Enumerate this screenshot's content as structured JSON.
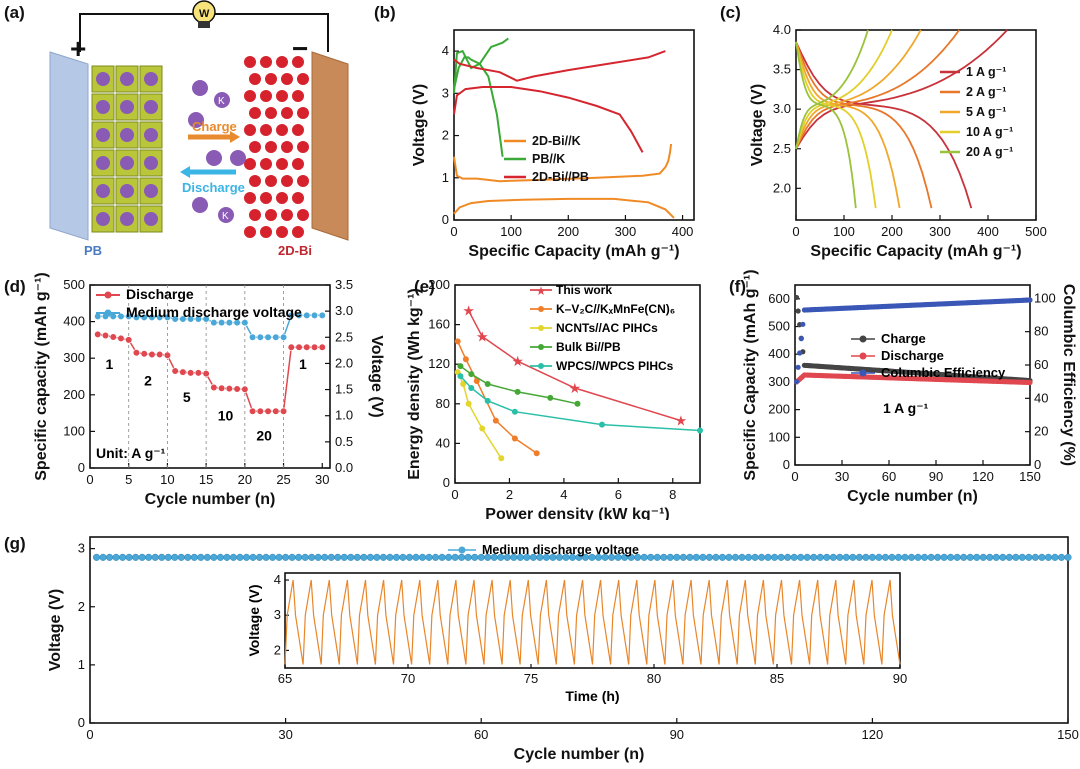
{
  "panels": {
    "a": {
      "label": "(a)",
      "plus": "+",
      "minus": "−",
      "bulb_letter": "W",
      "charge": "Charge",
      "discharge": "Discharge",
      "ion": "K",
      "left_material": "PB",
      "right_material": "2D-Bi",
      "colors": {
        "pb": "#b9c63a",
        "bi": "#d6222d",
        "ion": "#8a5bb5",
        "charge": "#e88a2e",
        "discharge": "#3bb4e6"
      }
    },
    "b": {
      "label": "(b)"
    },
    "c": {
      "label": "(c)"
    },
    "d": {
      "label": "(d)"
    },
    "e": {
      "label": "(e)"
    },
    "f": {
      "label": "(f)"
    },
    "g": {
      "label": "(g)"
    }
  },
  "chart_data": [
    {
      "id": "b",
      "type": "line",
      "xlabel": "Specific Capacity (mAh g⁻¹)",
      "ylabel": "Voltage (V)",
      "xlim": [
        0,
        420
      ],
      "ylim": [
        0,
        4.5
      ],
      "xticks": [
        0,
        100,
        200,
        300,
        400
      ],
      "yticks": [
        0,
        1,
        2,
        3,
        4
      ],
      "legend_position": "center-right",
      "series": [
        {
          "name": "2D-Bi//K",
          "color": "#f08a24",
          "x": [
            0,
            5,
            15,
            40,
            80,
            150,
            250,
            330,
            360,
            370,
            375,
            378,
            380
          ],
          "y": [
            1.5,
            1.05,
            0.98,
            0.98,
            0.92,
            0.95,
            1.0,
            1.05,
            1.1,
            1.25,
            1.4,
            1.6,
            1.8
          ]
        },
        {
          "name": "2D-Bi//K",
          "color": "#f08a24",
          "legend": false,
          "x": [
            0,
            10,
            30,
            60,
            120,
            200,
            280,
            340,
            370,
            385
          ],
          "y": [
            0.15,
            0.3,
            0.4,
            0.45,
            0.48,
            0.5,
            0.5,
            0.42,
            0.25,
            0.05
          ]
        },
        {
          "name": "PB//K",
          "color": "#3aa935",
          "x": [
            0,
            8,
            18,
            25,
            30,
            45,
            60,
            75,
            85
          ],
          "y": [
            3.1,
            3.6,
            3.85,
            3.85,
            3.8,
            3.7,
            3.4,
            2.5,
            1.5
          ]
        },
        {
          "name": "PB//K",
          "color": "#3aa935",
          "legend": false,
          "x": [
            0,
            5,
            15,
            30,
            45,
            55,
            65,
            75,
            85,
            95
          ],
          "y": [
            3.0,
            3.95,
            4.0,
            3.6,
            3.7,
            3.9,
            4.1,
            4.15,
            4.2,
            4.3
          ]
        },
        {
          "name": "2D-Bi//PB",
          "color": "#d5262f",
          "x": [
            0,
            10,
            40,
            80,
            110,
            140,
            200,
            270,
            340,
            370
          ],
          "y": [
            3.8,
            3.7,
            3.6,
            3.5,
            3.3,
            3.4,
            3.55,
            3.7,
            3.85,
            4.0
          ]
        },
        {
          "name": "2D-Bi//PB",
          "color": "#d5262f",
          "legend": false,
          "x": [
            0,
            5,
            20,
            50,
            100,
            150,
            200,
            250,
            290,
            310,
            330
          ],
          "y": [
            2.5,
            2.95,
            3.1,
            3.15,
            3.15,
            3.05,
            2.9,
            2.7,
            2.5,
            2.1,
            1.6
          ]
        }
      ]
    },
    {
      "id": "c",
      "type": "line",
      "xlabel": "Specific Capacity (mAh g⁻¹)",
      "ylabel": "Voltage (V)",
      "xlim": [
        0,
        500
      ],
      "ylim": [
        1.6,
        4.0
      ],
      "xticks": [
        0,
        100,
        200,
        300,
        400,
        500
      ],
      "yticks": [
        2.0,
        2.5,
        3.0,
        3.5,
        4.0
      ],
      "legend_position": "right",
      "series": [
        {
          "name": "1 A g⁻¹",
          "color": "#c8323b",
          "cap": 440
        },
        {
          "name": "2 A g⁻¹",
          "color": "#e8772a",
          "cap": 340
        },
        {
          "name": "5 A g⁻¹",
          "color": "#f0a82c",
          "cap": 260
        },
        {
          "name": "10 A g⁻¹",
          "color": "#e2cf2a",
          "cap": 200
        },
        {
          "name": "20 A g⁻¹",
          "color": "#9ac23a",
          "cap": 150
        }
      ]
    },
    {
      "id": "d",
      "type": "scatter",
      "xlabel": "Cycle number (n)",
      "ylabel": "Specific capacity (mAh g⁻¹)",
      "y2label": "Voltage (V)",
      "xlim": [
        0,
        31
      ],
      "ylim": [
        0,
        500
      ],
      "y2lim": [
        0,
        3.5
      ],
      "xticks": [
        0,
        5,
        10,
        15,
        20,
        25,
        30
      ],
      "yticks": [
        0,
        100,
        200,
        300,
        400,
        500
      ],
      "y2ticks": [
        0.0,
        0.5,
        1.0,
        1.5,
        2.0,
        2.5,
        3.0,
        3.5
      ],
      "legend_position": "top-left",
      "rate_labels": [
        {
          "text": "1",
          "x": 2.5,
          "y": 270
        },
        {
          "text": "2",
          "x": 7.5,
          "y": 225
        },
        {
          "text": "5",
          "x": 12.5,
          "y": 180
        },
        {
          "text": "10",
          "x": 17.5,
          "y": 130
        },
        {
          "text": "20",
          "x": 22.5,
          "y": 75
        },
        {
          "text": "1",
          "x": 27.5,
          "y": 270
        }
      ],
      "unit_text": "Unit: A g⁻¹",
      "series": [
        {
          "name": "Discharge",
          "color": "#e0474f",
          "axis": "y",
          "x": [
            1,
            2,
            3,
            4,
            5,
            6,
            7,
            8,
            9,
            10,
            11,
            12,
            13,
            14,
            15,
            16,
            17,
            18,
            19,
            20,
            21,
            22,
            23,
            24,
            25,
            26,
            27,
            28,
            29,
            30
          ],
          "y": [
            365,
            362,
            358,
            354,
            350,
            315,
            312,
            310,
            310,
            308,
            265,
            262,
            260,
            260,
            258,
            220,
            218,
            217,
            216,
            215,
            155,
            155,
            155,
            155,
            155,
            330,
            330,
            330,
            330,
            330
          ]
        },
        {
          "name": "Medium discharge voltage",
          "color": "#4aa8d8",
          "axis": "y2",
          "x": [
            1,
            2,
            3,
            4,
            5,
            6,
            7,
            8,
            9,
            10,
            11,
            12,
            13,
            14,
            15,
            16,
            17,
            18,
            19,
            20,
            21,
            22,
            23,
            24,
            25,
            26,
            27,
            28,
            29,
            30
          ],
          "y": [
            2.9,
            2.9,
            2.9,
            2.9,
            2.9,
            2.88,
            2.88,
            2.88,
            2.88,
            2.88,
            2.85,
            2.85,
            2.85,
            2.85,
            2.85,
            2.78,
            2.78,
            2.78,
            2.78,
            2.78,
            2.5,
            2.5,
            2.5,
            2.5,
            2.5,
            2.92,
            2.92,
            2.92,
            2.92,
            2.92
          ]
        }
      ]
    },
    {
      "id": "e",
      "type": "line",
      "xlabel": "Power density (kW kg⁻¹)",
      "ylabel": "Energy density (Wh kg⁻¹)",
      "xlim": [
        0,
        9
      ],
      "ylim": [
        0,
        200
      ],
      "xticks": [
        0,
        2,
        4,
        6,
        8
      ],
      "yticks": [
        0,
        40,
        80,
        120,
        160,
        200
      ],
      "legend_position": "top-right",
      "series": [
        {
          "name": "This work",
          "color": "#e0474f",
          "marker": "star",
          "x": [
            0.5,
            1.0,
            2.3,
            4.4,
            8.3
          ],
          "y": [
            174,
            148,
            123,
            96,
            63
          ]
        },
        {
          "name": "K–V₂C//KₓMnFe(CN)₆",
          "color": "#f07d2a",
          "marker": "circle",
          "x": [
            0.1,
            0.4,
            0.8,
            1.5,
            2.2,
            3.0
          ],
          "y": [
            143,
            125,
            103,
            63,
            45,
            30
          ]
        },
        {
          "name": "NCNTs//AC PIHCs",
          "color": "#e3d52c",
          "marker": "circle",
          "x": [
            0.1,
            0.3,
            0.5,
            1.0,
            1.7
          ],
          "y": [
            112,
            100,
            80,
            55,
            25
          ]
        },
        {
          "name": "Bulk Bi//PB",
          "color": "#45a835",
          "marker": "circle",
          "x": [
            0.2,
            0.6,
            1.2,
            2.3,
            3.5,
            4.5
          ],
          "y": [
            118,
            110,
            100,
            92,
            86,
            80
          ]
        },
        {
          "name": "WPCS//WPCS PIHCs",
          "color": "#2abfa8",
          "marker": "circle",
          "x": [
            0.2,
            0.6,
            1.2,
            2.2,
            5.4,
            9.0
          ],
          "y": [
            108,
            96,
            83,
            72,
            59,
            53
          ]
        }
      ]
    },
    {
      "id": "f",
      "type": "scatter",
      "xlabel": "Cycle number (n)",
      "ylabel": "Specific Capacity (mAh g⁻¹)",
      "y2label": "Columbic Efficiency (%)",
      "xlim": [
        0,
        150
      ],
      "ylim": [
        0,
        650
      ],
      "y2lim": [
        0,
        108
      ],
      "xticks": [
        0,
        30,
        60,
        90,
        120,
        150
      ],
      "yticks": [
        0,
        100,
        200,
        300,
        400,
        500,
        600
      ],
      "y2ticks": [
        0,
        20,
        40,
        60,
        80,
        100
      ],
      "annotation": "1 A g⁻¹",
      "legend_position": "center-right",
      "series": [
        {
          "name": "Charge",
          "color": "#444444",
          "axis": "y",
          "start": 360,
          "first": 605,
          "end": 305
        },
        {
          "name": "Discharge",
          "color": "#e0474f",
          "axis": "y",
          "start": 325,
          "first": 300,
          "end": 298
        },
        {
          "name": "Columbic Efficiency",
          "color": "#3a57b7",
          "axis": "y2",
          "start": 93,
          "first": 50,
          "end": 99
        }
      ]
    },
    {
      "id": "g",
      "type": "line",
      "xlabel": "Cycle number (n)",
      "ylabel": "Voltage (V)",
      "xlim": [
        0,
        150
      ],
      "ylim": [
        0,
        3.2
      ],
      "xticks": [
        0,
        30,
        60,
        90,
        120,
        150
      ],
      "yticks": [
        0,
        1,
        2,
        3
      ],
      "legend_position": "top-center",
      "series": [
        {
          "name": "Medium discharge voltage",
          "color": "#4aa8d8",
          "value": 2.85
        }
      ],
      "inset": {
        "xlabel": "Time (h)",
        "ylabel": "Voltage (V)",
        "xlim": [
          65,
          90
        ],
        "ylim": [
          1.5,
          4.2
        ],
        "xticks": [
          65,
          70,
          75,
          80,
          85,
          90
        ],
        "yticks": [
          2,
          3,
          4
        ],
        "color": "#e8862a",
        "cycles": 34,
        "vmin": 1.6,
        "vmax": 4.0
      }
    }
  ]
}
